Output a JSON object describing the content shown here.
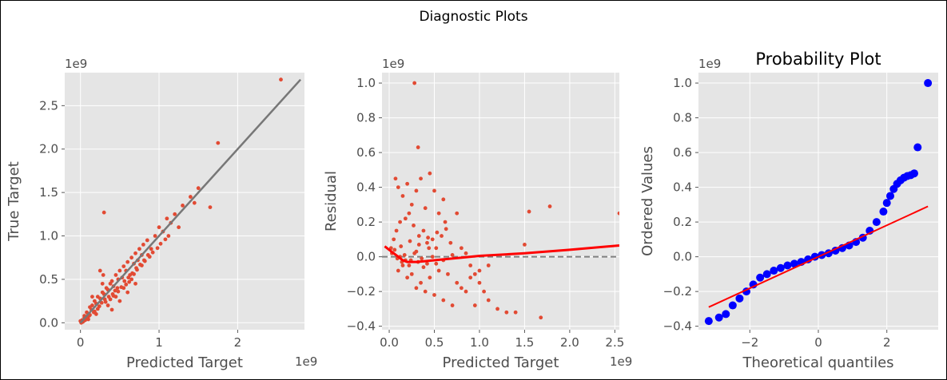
{
  "figure": {
    "title": "Diagnostic Plots"
  },
  "colors": {
    "panel_bg": "#e5e5e5",
    "grid": "#ffffff",
    "points": "#e24a33",
    "identity_line": "#777777",
    "lowess": "#ff0000",
    "zero_line": "#808080",
    "qq_points": "#0000ff",
    "qq_fit": "#ff0000"
  },
  "chart_data": [
    {
      "type": "scatter",
      "name": "true-vs-predicted",
      "title": "",
      "xlabel": "Predicted Target",
      "ylabel": "True Target",
      "x_offset_label": "1e9",
      "y_offset_label": "1e9",
      "xlim": [
        -0.2,
        2.85
      ],
      "ylim": [
        -0.08,
        2.88
      ],
      "xticks": [
        0,
        1,
        2
      ],
      "xtick_labels": [
        "0",
        "1",
        "2"
      ],
      "yticks": [
        0.0,
        0.5,
        1.0,
        1.5,
        2.0,
        2.5
      ],
      "ytick_labels": [
        "0.0",
        "0.5",
        "1.0",
        "1.5",
        "2.0",
        "2.5"
      ],
      "grid": true,
      "reference_line": {
        "x": [
          0,
          2.8
        ],
        "y": [
          0,
          2.8
        ]
      },
      "points": {
        "x": [
          0.0,
          0.02,
          0.05,
          0.08,
          0.1,
          0.12,
          0.15,
          0.18,
          0.2,
          0.22,
          0.25,
          0.28,
          0.3,
          0.33,
          0.35,
          0.38,
          0.4,
          0.42,
          0.45,
          0.48,
          0.5,
          0.53,
          0.55,
          0.58,
          0.6,
          0.63,
          0.65,
          0.68,
          0.7,
          0.73,
          0.75,
          0.78,
          0.8,
          0.85,
          0.9,
          0.95,
          1.0,
          1.05,
          1.1,
          1.15,
          1.2,
          1.3,
          1.4,
          1.45,
          1.5,
          1.65,
          1.75,
          2.55,
          0.3,
          0.4,
          0.5,
          0.6,
          0.7,
          0.25,
          0.35,
          0.45,
          0.55,
          0.65,
          0.15,
          0.2,
          0.28,
          0.1,
          0.05,
          0.12,
          0.18,
          0.22,
          0.32,
          0.38,
          0.42,
          0.48,
          0.52,
          0.58,
          0.62,
          0.68,
          0.72,
          0.78,
          0.82,
          0.88,
          0.92,
          0.98,
          1.02,
          1.08,
          1.12,
          0.03,
          0.07,
          0.09,
          0.14,
          0.17,
          0.24,
          0.27,
          0.31,
          0.36,
          0.41,
          0.44,
          0.47,
          0.56,
          0.61,
          0.66,
          0.71,
          0.76,
          0.81,
          0.86,
          1.25,
          0.29,
          0.01,
          0.04,
          0.06,
          0.11
        ],
        "y": [
          0.02,
          0.03,
          0.08,
          0.12,
          0.1,
          0.18,
          0.2,
          0.25,
          0.22,
          0.3,
          0.28,
          0.35,
          0.33,
          0.4,
          0.38,
          0.45,
          0.48,
          0.42,
          0.55,
          0.5,
          0.6,
          0.52,
          0.65,
          0.6,
          0.7,
          0.55,
          0.75,
          0.68,
          0.8,
          0.72,
          0.85,
          0.78,
          0.9,
          0.95,
          0.85,
          1.0,
          1.1,
          1.05,
          1.2,
          1.15,
          1.25,
          1.35,
          1.45,
          1.38,
          1.55,
          1.33,
          2.07,
          2.8,
          1.27,
          0.15,
          0.25,
          0.35,
          0.45,
          0.6,
          0.2,
          0.3,
          0.4,
          0.5,
          0.3,
          0.1,
          0.45,
          0.04,
          0.06,
          0.09,
          0.13,
          0.16,
          0.24,
          0.27,
          0.31,
          0.36,
          0.41,
          0.44,
          0.47,
          0.56,
          0.61,
          0.66,
          0.71,
          0.76,
          0.81,
          0.86,
          0.91,
          0.96,
          1.0,
          0.01,
          0.05,
          0.07,
          0.15,
          0.12,
          0.19,
          0.23,
          0.27,
          0.3,
          0.33,
          0.37,
          0.4,
          0.48,
          0.52,
          0.57,
          0.63,
          0.67,
          0.72,
          0.78,
          1.1,
          0.55,
          0.0,
          0.02,
          0.03,
          0.08
        ]
      }
    },
    {
      "type": "scatter",
      "name": "residuals",
      "title": "",
      "xlabel": "Predicted Target",
      "ylabel": "Residual",
      "x_offset_label": "1e9",
      "y_offset_label": "1e9",
      "xlim": [
        -0.08,
        2.55
      ],
      "ylim": [
        -0.42,
        1.06
      ],
      "xticks": [
        0.0,
        0.5,
        1.0,
        1.5,
        2.0,
        2.5
      ],
      "xtick_labels": [
        "0.0",
        "0.5",
        "1.0",
        "1.5",
        "2.0",
        "2.5"
      ],
      "yticks": [
        -0.4,
        -0.2,
        0.0,
        0.2,
        0.4,
        0.6,
        0.8,
        1.0
      ],
      "ytick_labels": [
        "−0.4",
        "−0.2",
        "0.0",
        "0.2",
        "0.4",
        "0.6",
        "0.8",
        "1.0"
      ],
      "grid": true,
      "zero_line": {
        "x": [
          -0.08,
          2.55
        ],
        "y": [
          0,
          0
        ]
      },
      "lowess": {
        "x": [
          -0.05,
          0.0,
          0.05,
          0.1,
          0.15,
          0.2,
          0.3,
          0.4,
          0.6,
          0.8,
          1.0,
          1.5,
          2.0,
          2.55
        ],
        "y": [
          0.06,
          0.04,
          0.02,
          0.0,
          -0.02,
          -0.03,
          -0.03,
          -0.025,
          -0.015,
          -0.005,
          0.005,
          0.02,
          0.04,
          0.065
        ]
      },
      "points": {
        "x": [
          0.28,
          0.32,
          0.07,
          0.1,
          0.15,
          0.2,
          0.25,
          0.3,
          0.35,
          0.4,
          0.45,
          0.5,
          0.55,
          0.6,
          0.02,
          0.05,
          0.08,
          0.12,
          0.18,
          0.22,
          0.27,
          0.33,
          0.38,
          0.42,
          0.48,
          0.52,
          0.58,
          0.62,
          0.68,
          0.75,
          0.8,
          0.85,
          0.9,
          0.95,
          1.0,
          1.05,
          1.1,
          1.2,
          1.3,
          1.4,
          1.5,
          1.55,
          1.68,
          1.78,
          2.55,
          0.7,
          0.65,
          0.75,
          0.85,
          0.95,
          1.1,
          0.15,
          0.25,
          0.35,
          0.45,
          0.55,
          0.12,
          0.18,
          0.22,
          0.28,
          0.32,
          0.38,
          0.42,
          0.48,
          0.03,
          0.06,
          0.09,
          0.14,
          0.17,
          0.24,
          0.3,
          0.36,
          0.44,
          0.52,
          0.6,
          0.1,
          0.2,
          0.3,
          0.4,
          0.5,
          0.6,
          0.7,
          0.8,
          0.9,
          1.0,
          0.13,
          0.23,
          0.33,
          0.43,
          0.53,
          0.63
        ],
        "y": [
          1.0,
          0.63,
          0.45,
          0.4,
          0.35,
          0.42,
          0.3,
          0.38,
          0.45,
          0.28,
          0.48,
          0.38,
          0.25,
          0.33,
          0.05,
          0.1,
          0.15,
          0.2,
          0.22,
          0.25,
          0.18,
          0.12,
          0.15,
          0.08,
          0.1,
          0.05,
          0.12,
          0.2,
          0.08,
          0.25,
          0.05,
          0.02,
          -0.05,
          -0.1,
          -0.15,
          -0.2,
          -0.25,
          -0.3,
          -0.32,
          -0.32,
          0.07,
          0.26,
          -0.35,
          0.29,
          0.25,
          0.01,
          -0.1,
          -0.15,
          -0.2,
          -0.28,
          -0.05,
          -0.05,
          -0.1,
          -0.15,
          -0.12,
          -0.08,
          0.0,
          -0.02,
          -0.05,
          0.02,
          -0.03,
          -0.06,
          -0.04,
          0.0,
          0.02,
          0.04,
          -0.01,
          -0.03,
          0.01,
          -0.02,
          0.03,
          -0.01,
          0.05,
          -0.04,
          -0.02,
          -0.08,
          -0.12,
          -0.18,
          -0.2,
          -0.22,
          -0.25,
          -0.28,
          -0.18,
          -0.12,
          -0.08,
          0.06,
          0.09,
          0.07,
          0.11,
          0.14,
          0.16
        ]
      }
    },
    {
      "type": "scatter",
      "name": "probability-plot",
      "title": "Probability Plot",
      "xlabel": "Theoretical quantiles",
      "ylabel": "Ordered Values",
      "x_offset_label": "",
      "y_offset_label": "1e9",
      "xlim": [
        -3.5,
        3.5
      ],
      "ylim": [
        -0.42,
        1.06
      ],
      "xticks": [
        -2,
        0,
        2
      ],
      "xtick_labels": [
        "−2",
        "0",
        "2"
      ],
      "yticks": [
        -0.4,
        -0.2,
        0.0,
        0.2,
        0.4,
        0.6,
        0.8,
        1.0
      ],
      "ytick_labels": [
        "−0.4",
        "−0.2",
        "0.0",
        "0.2",
        "0.4",
        "0.6",
        "0.8",
        "1.0"
      ],
      "grid": true,
      "fit_line": {
        "x": [
          -3.2,
          3.2
        ],
        "y": [
          -0.29,
          0.29
        ]
      },
      "points": {
        "x": [
          -3.2,
          -2.9,
          -2.7,
          -2.5,
          -2.3,
          -2.1,
          -1.9,
          -1.7,
          -1.5,
          -1.3,
          -1.1,
          -0.9,
          -0.7,
          -0.5,
          -0.3,
          -0.1,
          0.1,
          0.3,
          0.5,
          0.7,
          0.9,
          1.1,
          1.3,
          1.5,
          1.7,
          1.9,
          2.0,
          2.1,
          2.2,
          2.3,
          2.4,
          2.5,
          2.6,
          2.7,
          2.8,
          2.9,
          3.2
        ],
        "y": [
          -0.37,
          -0.35,
          -0.33,
          -0.28,
          -0.24,
          -0.2,
          -0.16,
          -0.12,
          -0.1,
          -0.08,
          -0.065,
          -0.05,
          -0.04,
          -0.03,
          -0.015,
          0.0,
          0.01,
          0.02,
          0.035,
          0.05,
          0.065,
          0.085,
          0.11,
          0.15,
          0.2,
          0.26,
          0.31,
          0.35,
          0.39,
          0.42,
          0.44,
          0.455,
          0.465,
          0.47,
          0.48,
          0.63,
          1.0
        ]
      }
    }
  ]
}
